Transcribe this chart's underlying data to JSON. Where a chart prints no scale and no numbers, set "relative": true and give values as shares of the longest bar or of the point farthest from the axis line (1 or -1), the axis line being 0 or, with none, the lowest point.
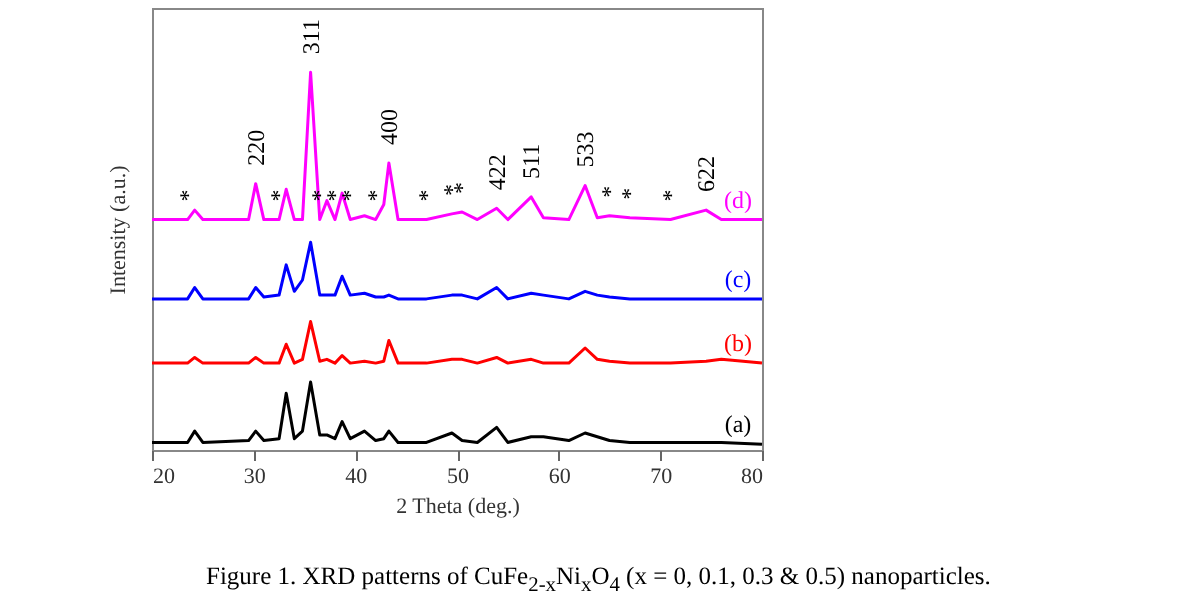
{
  "chart_data": {
    "type": "line",
    "relative": true,
    "xlabel": "2 Theta (deg.)",
    "ylabel": "Intensity (a.u.)",
    "xlim": [
      20,
      80
    ],
    "xticks": [
      20,
      30,
      40,
      50,
      60,
      70,
      80
    ],
    "tick_labels": "x",
    "x": [
      20,
      23.5,
      24.2,
      25,
      29.5,
      30.2,
      31,
      32.5,
      33.2,
      34,
      34.8,
      35.6,
      36.5,
      37.2,
      38,
      38.7,
      39.5,
      40.9,
      42,
      42.8,
      43.3,
      44.2,
      47,
      49.5,
      50.5,
      52,
      53.9,
      55,
      57.3,
      58.5,
      61,
      62.6,
      63.8,
      65,
      67,
      71,
      74.5,
      76,
      80
    ],
    "series": [
      {
        "name": "(a)",
        "color": "#000000",
        "values": [
          0.02,
          0.02,
          0.05,
          0.02,
          0.025,
          0.05,
          0.025,
          0.03,
          0.15,
          0.03,
          0.05,
          0.18,
          0.04,
          0.04,
          0.03,
          0.075,
          0.03,
          0.05,
          0.025,
          0.03,
          0.05,
          0.02,
          0.02,
          0.045,
          0.025,
          0.02,
          0.06,
          0.02,
          0.035,
          0.035,
          0.025,
          0.045,
          0.035,
          0.025,
          0.02,
          0.02,
          0.02,
          0.02,
          0.015
        ]
      },
      {
        "name": "(b)",
        "color": "#ff0000",
        "values": [
          0.23,
          0.23,
          0.245,
          0.23,
          0.23,
          0.245,
          0.23,
          0.23,
          0.28,
          0.23,
          0.24,
          0.34,
          0.235,
          0.24,
          0.23,
          0.25,
          0.23,
          0.235,
          0.23,
          0.235,
          0.29,
          0.23,
          0.23,
          0.24,
          0.24,
          0.23,
          0.245,
          0.23,
          0.24,
          0.23,
          0.23,
          0.27,
          0.24,
          0.235,
          0.23,
          0.23,
          0.235,
          0.24,
          0.23
        ]
      },
      {
        "name": "(c)",
        "color": "#0000ff",
        "values": [
          0.4,
          0.4,
          0.43,
          0.4,
          0.4,
          0.43,
          0.405,
          0.41,
          0.49,
          0.42,
          0.45,
          0.55,
          0.41,
          0.41,
          0.41,
          0.46,
          0.41,
          0.415,
          0.405,
          0.405,
          0.41,
          0.4,
          0.4,
          0.41,
          0.41,
          0.4,
          0.43,
          0.4,
          0.415,
          0.41,
          0.4,
          0.42,
          0.41,
          0.405,
          0.4,
          0.4,
          0.4,
          0.4,
          0.4
        ]
      },
      {
        "name": "(d)",
        "color": "#ff00ff",
        "values": [
          0.61,
          0.61,
          0.635,
          0.61,
          0.61,
          0.705,
          0.61,
          0.61,
          0.69,
          0.61,
          0.61,
          1.0,
          0.61,
          0.66,
          0.61,
          0.68,
          0.61,
          0.62,
          0.61,
          0.65,
          0.76,
          0.61,
          0.61,
          0.625,
          0.63,
          0.61,
          0.64,
          0.61,
          0.67,
          0.615,
          0.61,
          0.7,
          0.615,
          0.62,
          0.615,
          0.61,
          0.635,
          0.61,
          0.61
        ]
      }
    ],
    "annotations": [
      {
        "text": "220",
        "x": 30.2,
        "y": 0.705
      },
      {
        "text": "311",
        "x": 35.6,
        "y": 1.0
      },
      {
        "text": "400",
        "x": 43.3,
        "y": 0.76
      },
      {
        "text": "422",
        "x": 53.9,
        "y": 0.64
      },
      {
        "text": "511",
        "x": 57.3,
        "y": 0.67
      },
      {
        "text": "533",
        "x": 62.6,
        "y": 0.7
      },
      {
        "text": "622",
        "x": 74.5,
        "y": 0.635
      },
      {
        "text": "*",
        "x": 23.5,
        "y": 0.61
      },
      {
        "text": "*",
        "x": 32.5,
        "y": 0.61
      },
      {
        "text": "*",
        "x": 36.5,
        "y": 0.61
      },
      {
        "text": "*",
        "x": 38.0,
        "y": 0.61
      },
      {
        "text": "*",
        "x": 39.5,
        "y": 0.61
      },
      {
        "text": "*",
        "x": 42.0,
        "y": 0.61
      },
      {
        "text": "*",
        "x": 47,
        "y": 0.61
      },
      {
        "text": "*",
        "x": 49.5,
        "y": 0.625
      },
      {
        "text": "*",
        "x": 50.5,
        "y": 0.63
      },
      {
        "text": "*",
        "x": 65,
        "y": 0.62
      },
      {
        "text": "*",
        "x": 67,
        "y": 0.615
      },
      {
        "text": "*",
        "x": 71,
        "y": 0.61
      },
      "Figure 1. XRD patterns of CuFe$_{2-x}$Ni$_{x}$O$_{4}$ (x = 0, 0.1, 0.3 & 0.5) nanoparticles."
    ]
  }
}
